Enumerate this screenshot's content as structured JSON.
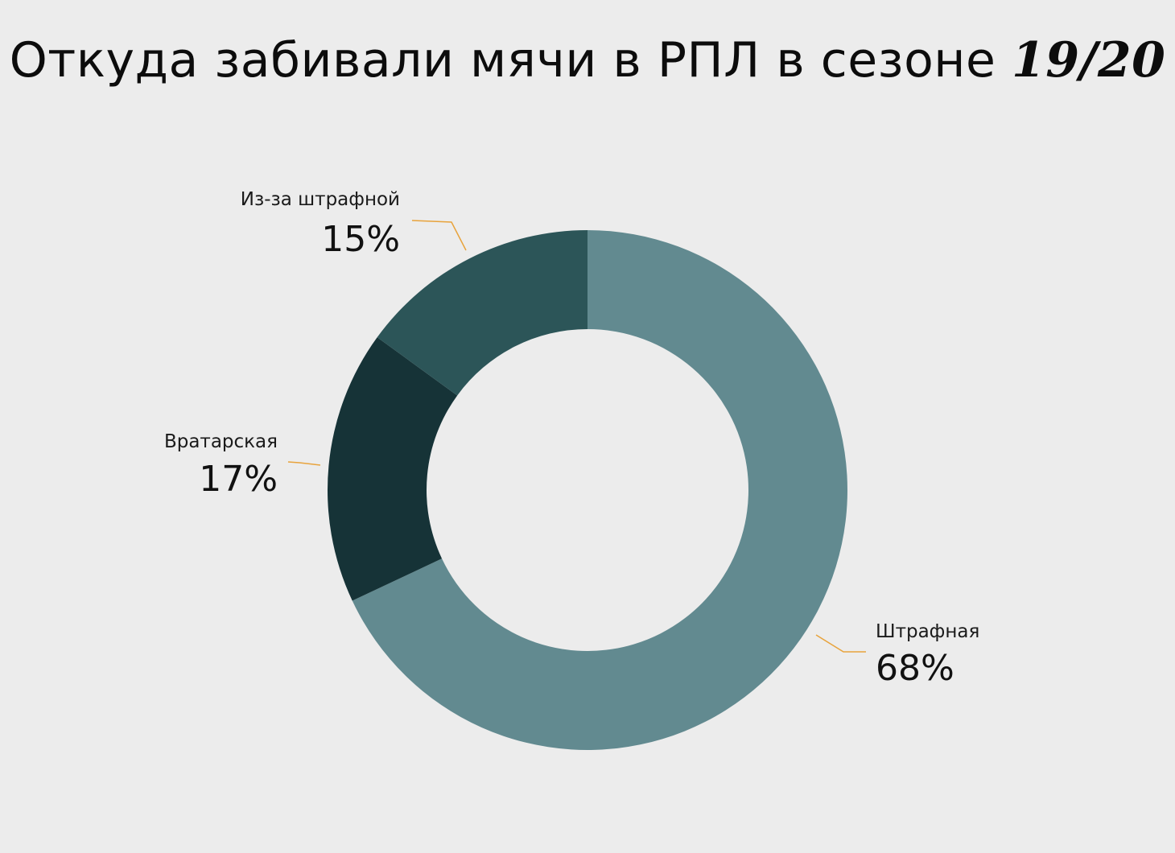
{
  "chart_data": {
    "type": "pie",
    "title": "Откуда забивали мячи в РПЛ в сезоне",
    "title_season": "19/20",
    "hole": true,
    "leader_color": "#e8a33c",
    "slices": [
      {
        "name": "Штрафная",
        "value": 68,
        "label": "68%",
        "color": "#628a90"
      },
      {
        "name": "Вратарская",
        "value": 17,
        "label": "17%",
        "color": "#163337"
      },
      {
        "name": "Из-за штрафной",
        "value": 15,
        "label": "15%",
        "color": "#2c5558"
      }
    ]
  }
}
